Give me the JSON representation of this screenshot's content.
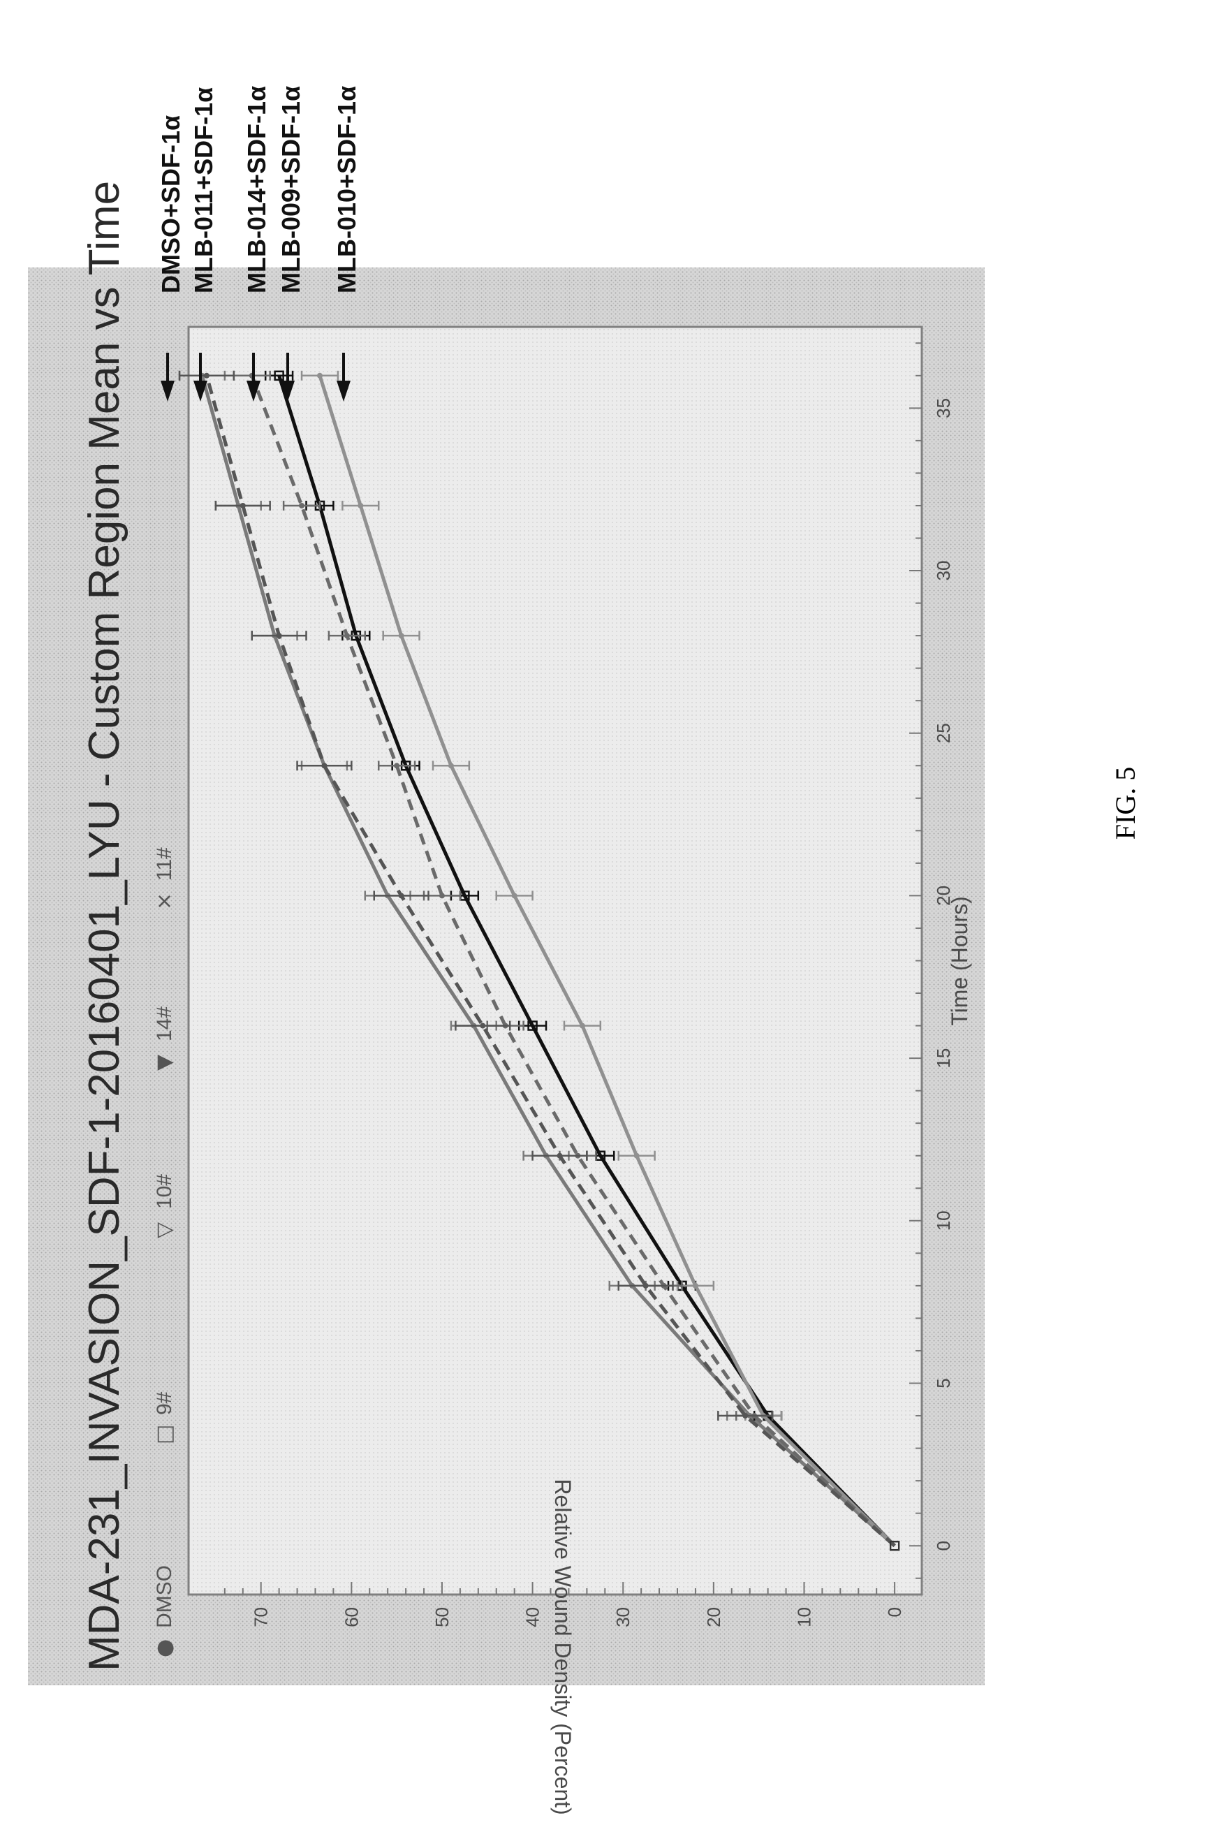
{
  "caption": "FIG. 5",
  "chart_data": {
    "type": "line",
    "title": "MDA-231_INVASION_SDF-1-20160401_LYU - Custom Region Mean vs Time",
    "xlabel": "Time (Hours)",
    "ylabel": "Relative Wound Density (Percent)",
    "xlim": [
      -1.5,
      37.5
    ],
    "ylim": [
      -3,
      78
    ],
    "xticks": [
      "0",
      "5",
      "10",
      "15",
      "20",
      "25",
      "30",
      "35"
    ],
    "yticks": [
      "0",
      "10",
      "20",
      "30",
      "40",
      "50",
      "60",
      "70"
    ],
    "grid": false,
    "legend_position": "top",
    "x": [
      0,
      4,
      8,
      12,
      16,
      20,
      24,
      28,
      32,
      36
    ],
    "series": [
      {
        "name": "DMSO",
        "marker": "●",
        "color": "#7a7a7a",
        "dash": "",
        "annotation": "DMSO+SDF-1α",
        "values": [
          0,
          16,
          29,
          38.5,
          46.5,
          56,
          63,
          68.5,
          72.5,
          76.5
        ],
        "error": 2.5
      },
      {
        "name": "9#",
        "marker": "□",
        "color": "#111111",
        "dash": "",
        "annotation": "MLB-009+SDF-1α",
        "values": [
          0,
          14,
          23.5,
          32.5,
          40,
          47.5,
          54,
          59.5,
          63.5,
          68
        ],
        "error": 1.5
      },
      {
        "name": "10#",
        "marker": "▽",
        "color": "#909090",
        "dash": "",
        "annotation": "MLB-010+SDF-1α",
        "values": [
          0,
          14.5,
          22,
          28.5,
          34.5,
          42,
          49,
          54.5,
          59,
          63.5
        ],
        "error": 2
      },
      {
        "name": "14#",
        "marker": "▼",
        "color": "#6a6a6a",
        "dash": "16,10",
        "annotation": "MLB-014+SDF-1α",
        "values": [
          0,
          15.5,
          25.5,
          35,
          43,
          50,
          55,
          60.5,
          65.5,
          71
        ],
        "error": 2
      },
      {
        "name": "11#",
        "marker": "×",
        "color": "#555555",
        "dash": "16,10",
        "annotation": "MLB-011+SDF-1α",
        "values": [
          0,
          16.5,
          27.5,
          37,
          45.5,
          54.5,
          63,
          68,
          72,
          76
        ],
        "error": 3
      }
    ]
  }
}
